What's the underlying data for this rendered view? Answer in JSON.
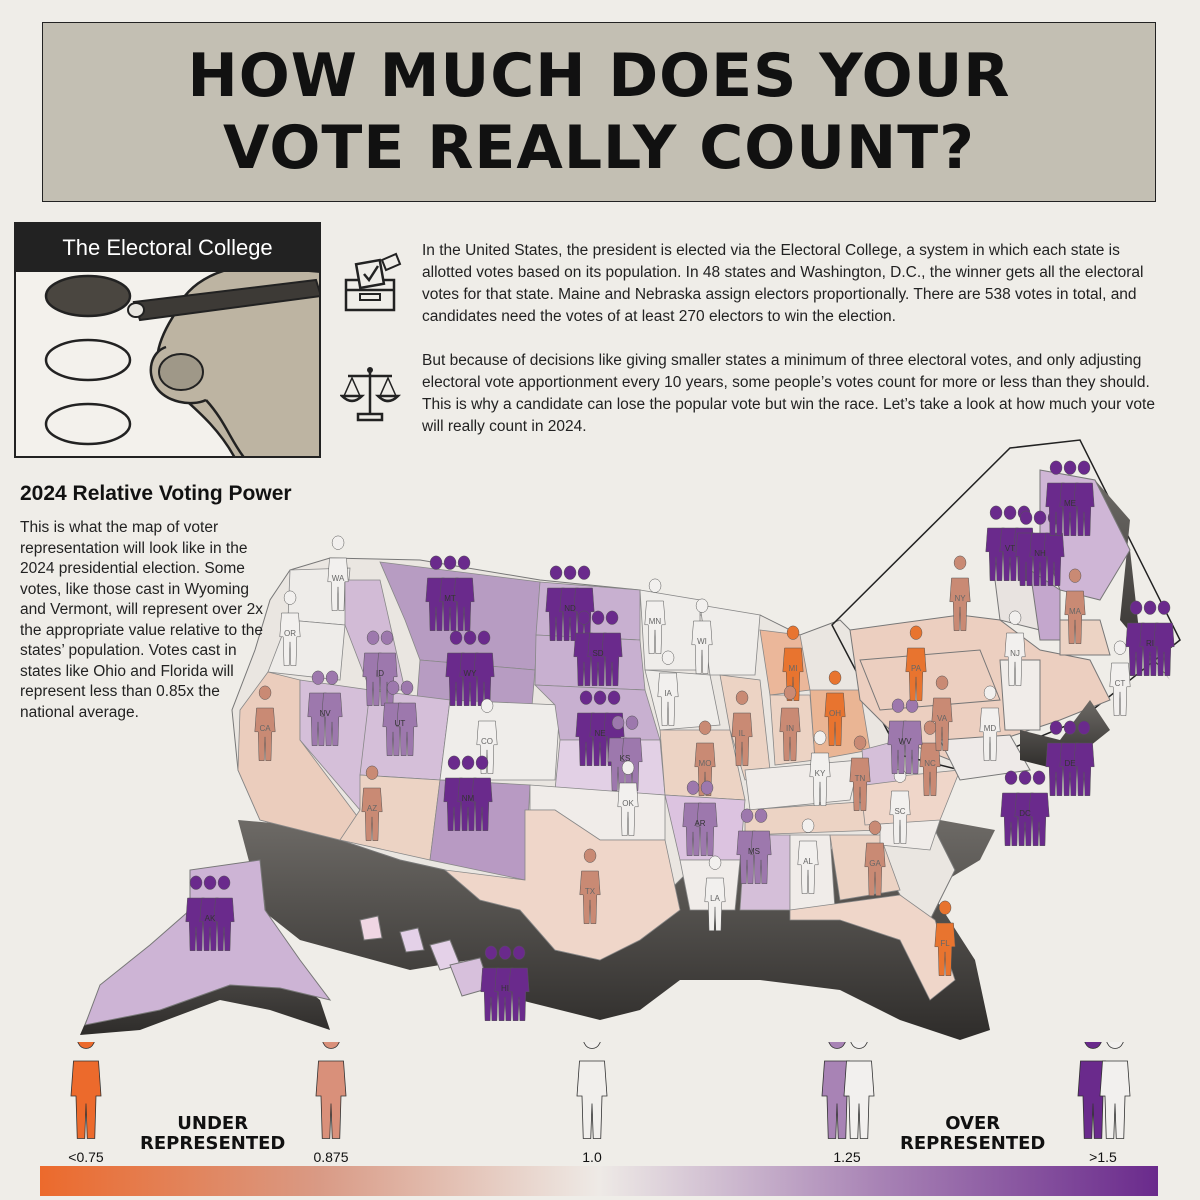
{
  "title": "HOW MUCH DOES YOUR VOTE REALLY COUNT?",
  "electoral_box": {
    "heading": "The Electoral College"
  },
  "intro": {
    "paragraph1": "In the United States, the president is elected via the Electoral College, a system in which each state is allotted votes based on its population. In 48 states and Washington, D.C., the winner gets all the electoral votes for that state. Maine and Nebraska assign electors proportionally. There are 538 votes in total, and candidates need the votes of at least 270 electors to win the election.",
    "paragraph2": "But because of decisions like giving smaller states a minimum of three electoral votes, and only adjusting electoral vote apportionment every 10 years, some people’s votes count for more or less than they should. This is why a candidate can lose the popular vote but win the race. Let’s take a look at how much your vote will really count in 2024.",
    "icon1": "ballot-box-icon",
    "icon2": "scales-icon"
  },
  "rvp": {
    "title": "2024 Relative Voting Power",
    "text": "This is what the map of voter representation will look like in the 2024 presidential election. Some votes, like those cast in Wyoming and Vermont, will represent over 2x the appropriate value relative to the states’ population. Votes cast in states like Ohio and Florida will represent less than 0.85x the national average."
  },
  "legend": {
    "under_label": "UNDER REPRESENTED",
    "over_label": "OVER REPRESENTED",
    "stops": [
      {
        "label": "<0.75",
        "people": 1,
        "color": "#ec6a2c"
      },
      {
        "label": "0.875",
        "people": 1,
        "color": "#d9907a"
      },
      {
        "label": "1.0",
        "people": 1,
        "color": "#f1efec"
      },
      {
        "label": "1.25",
        "people": 2,
        "color": "#a883b5"
      },
      {
        "label": ">1.5",
        "people": 2,
        "color": "#6a2a8c"
      }
    ]
  },
  "states": [
    {
      "abbr": "WA",
      "ratio": 1.0
    },
    {
      "abbr": "OR",
      "ratio": 1.0
    },
    {
      "abbr": "CA",
      "ratio": 0.85
    },
    {
      "abbr": "NV",
      "ratio": 1.25
    },
    {
      "abbr": "ID",
      "ratio": 1.25
    },
    {
      "abbr": "MT",
      "ratio": 1.5
    },
    {
      "abbr": "WY",
      "ratio": 1.5
    },
    {
      "abbr": "UT",
      "ratio": 1.25
    },
    {
      "abbr": "AZ",
      "ratio": 0.875
    },
    {
      "abbr": "CO",
      "ratio": 1.0
    },
    {
      "abbr": "NM",
      "ratio": 1.5
    },
    {
      "abbr": "ND",
      "ratio": 1.5
    },
    {
      "abbr": "SD",
      "ratio": 1.5
    },
    {
      "abbr": "NE",
      "ratio": 1.5
    },
    {
      "abbr": "KS",
      "ratio": 1.25
    },
    {
      "abbr": "OK",
      "ratio": 1.0
    },
    {
      "abbr": "TX",
      "ratio": 0.875
    },
    {
      "abbr": "MN",
      "ratio": 1.0
    },
    {
      "abbr": "IA",
      "ratio": 1.0
    },
    {
      "abbr": "MO",
      "ratio": 0.875
    },
    {
      "abbr": "AR",
      "ratio": 1.25
    },
    {
      "abbr": "LA",
      "ratio": 1.0
    },
    {
      "abbr": "WI",
      "ratio": 1.0
    },
    {
      "abbr": "IL",
      "ratio": 0.875
    },
    {
      "abbr": "MI",
      "ratio": 0.75
    },
    {
      "abbr": "IN",
      "ratio": 0.875
    },
    {
      "abbr": "OH",
      "ratio": 0.75
    },
    {
      "abbr": "KY",
      "ratio": 1.0
    },
    {
      "abbr": "TN",
      "ratio": 0.875
    },
    {
      "abbr": "MS",
      "ratio": 1.25
    },
    {
      "abbr": "AL",
      "ratio": 1.0
    },
    {
      "abbr": "GA",
      "ratio": 0.875
    },
    {
      "abbr": "FL",
      "ratio": 0.75
    },
    {
      "abbr": "SC",
      "ratio": 1.0
    },
    {
      "abbr": "NC",
      "ratio": 0.875
    },
    {
      "abbr": "VA",
      "ratio": 0.875
    },
    {
      "abbr": "WV",
      "ratio": 1.25
    },
    {
      "abbr": "PA",
      "ratio": 0.75
    },
    {
      "abbr": "NY",
      "ratio": 0.875
    },
    {
      "abbr": "VT",
      "ratio": 1.5
    },
    {
      "abbr": "NH",
      "ratio": 1.5
    },
    {
      "abbr": "ME",
      "ratio": 1.5
    },
    {
      "abbr": "MA",
      "ratio": 0.875
    },
    {
      "abbr": "RI",
      "ratio": 1.5
    },
    {
      "abbr": "CT",
      "ratio": 1.0
    },
    {
      "abbr": "NJ",
      "ratio": 1.0
    },
    {
      "abbr": "DE",
      "ratio": 1.5
    },
    {
      "abbr": "MD",
      "ratio": 1.0
    },
    {
      "abbr": "DC",
      "ratio": 1.5
    },
    {
      "abbr": "AK",
      "ratio": 1.5
    },
    {
      "abbr": "HI",
      "ratio": 1.5
    }
  ]
}
